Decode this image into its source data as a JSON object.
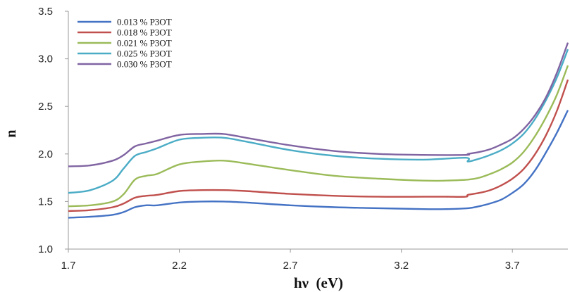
{
  "chart_data": {
    "type": "line",
    "xlabel": "hν  (eV)",
    "ylabel": "n",
    "xlim": [
      1.7,
      3.95
    ],
    "ylim": [
      1.0,
      3.5
    ],
    "x_ticks": [
      1.7,
      2.2,
      2.7,
      3.2,
      3.7
    ],
    "x_tick_labels": [
      "1.7",
      "2.2",
      "2.7",
      "3.2",
      "3.7"
    ],
    "y_ticks": [
      1.0,
      1.5,
      2.0,
      2.5,
      3.0,
      3.5
    ],
    "y_tick_labels": [
      "1.0",
      "1.5",
      "2.0",
      "2.5",
      "3.0",
      "3.5"
    ],
    "grid": false,
    "legend_position": "top-left",
    "series": [
      {
        "name": "0.013  %  P3OT",
        "color": "#4472C4",
        "points": [
          [
            1.7,
            1.33
          ],
          [
            1.8,
            1.34
          ],
          [
            1.9,
            1.36
          ],
          [
            1.95,
            1.39
          ],
          [
            2.0,
            1.44
          ],
          [
            2.05,
            1.46
          ],
          [
            2.1,
            1.46
          ],
          [
            2.2,
            1.49
          ],
          [
            2.3,
            1.5
          ],
          [
            2.4,
            1.5
          ],
          [
            2.5,
            1.49
          ],
          [
            2.7,
            1.46
          ],
          [
            2.9,
            1.44
          ],
          [
            3.1,
            1.43
          ],
          [
            3.3,
            1.42
          ],
          [
            3.4,
            1.42
          ],
          [
            3.5,
            1.43
          ],
          [
            3.55,
            1.45
          ],
          [
            3.6,
            1.48
          ],
          [
            3.65,
            1.52
          ],
          [
            3.7,
            1.59
          ],
          [
            3.75,
            1.68
          ],
          [
            3.8,
            1.82
          ],
          [
            3.85,
            2.01
          ],
          [
            3.9,
            2.22
          ],
          [
            3.95,
            2.46
          ]
        ]
      },
      {
        "name": "0.018  %  P3OT",
        "color": "#C0504D",
        "points": [
          [
            1.7,
            1.4
          ],
          [
            1.8,
            1.41
          ],
          [
            1.9,
            1.44
          ],
          [
            1.95,
            1.48
          ],
          [
            2.0,
            1.54
          ],
          [
            2.05,
            1.56
          ],
          [
            2.1,
            1.57
          ],
          [
            2.2,
            1.61
          ],
          [
            2.3,
            1.62
          ],
          [
            2.4,
            1.62
          ],
          [
            2.5,
            1.61
          ],
          [
            2.7,
            1.58
          ],
          [
            2.9,
            1.56
          ],
          [
            3.1,
            1.55
          ],
          [
            3.3,
            1.55
          ],
          [
            3.4,
            1.55
          ],
          [
            3.49,
            1.55
          ],
          [
            3.5,
            1.57
          ],
          [
            3.55,
            1.59
          ],
          [
            3.6,
            1.62
          ],
          [
            3.65,
            1.67
          ],
          [
            3.7,
            1.74
          ],
          [
            3.75,
            1.84
          ],
          [
            3.8,
            1.99
          ],
          [
            3.85,
            2.19
          ],
          [
            3.9,
            2.45
          ],
          [
            3.95,
            2.78
          ]
        ]
      },
      {
        "name": "0.021  %  P3OT",
        "color": "#9BBB59",
        "points": [
          [
            1.7,
            1.45
          ],
          [
            1.8,
            1.46
          ],
          [
            1.9,
            1.5
          ],
          [
            1.95,
            1.58
          ],
          [
            2.0,
            1.73
          ],
          [
            2.05,
            1.77
          ],
          [
            2.1,
            1.79
          ],
          [
            2.2,
            1.89
          ],
          [
            2.3,
            1.92
          ],
          [
            2.4,
            1.93
          ],
          [
            2.5,
            1.9
          ],
          [
            2.7,
            1.83
          ],
          [
            2.9,
            1.77
          ],
          [
            3.1,
            1.74
          ],
          [
            3.3,
            1.72
          ],
          [
            3.4,
            1.72
          ],
          [
            3.5,
            1.73
          ],
          [
            3.55,
            1.75
          ],
          [
            3.6,
            1.79
          ],
          [
            3.65,
            1.84
          ],
          [
            3.7,
            1.91
          ],
          [
            3.75,
            2.02
          ],
          [
            3.8,
            2.18
          ],
          [
            3.85,
            2.38
          ],
          [
            3.9,
            2.62
          ],
          [
            3.95,
            2.93
          ]
        ]
      },
      {
        "name": "0.025  %  P3OT",
        "color": "#4BACC6",
        "points": [
          [
            1.7,
            1.59
          ],
          [
            1.8,
            1.62
          ],
          [
            1.9,
            1.72
          ],
          [
            1.95,
            1.85
          ],
          [
            2.0,
            1.98
          ],
          [
            2.05,
            2.02
          ],
          [
            2.1,
            2.06
          ],
          [
            2.2,
            2.15
          ],
          [
            2.3,
            2.17
          ],
          [
            2.4,
            2.17
          ],
          [
            2.5,
            2.13
          ],
          [
            2.7,
            2.04
          ],
          [
            2.9,
            1.98
          ],
          [
            3.1,
            1.95
          ],
          [
            3.3,
            1.94
          ],
          [
            3.49,
            1.96
          ],
          [
            3.5,
            1.92
          ],
          [
            3.55,
            1.95
          ],
          [
            3.6,
            1.99
          ],
          [
            3.65,
            2.04
          ],
          [
            3.7,
            2.11
          ],
          [
            3.75,
            2.21
          ],
          [
            3.8,
            2.36
          ],
          [
            3.85,
            2.56
          ],
          [
            3.9,
            2.8
          ],
          [
            3.95,
            3.1
          ]
        ]
      },
      {
        "name": "0.030  %  P3OT",
        "color": "#8064A2",
        "points": [
          [
            1.7,
            1.87
          ],
          [
            1.8,
            1.88
          ],
          [
            1.9,
            1.93
          ],
          [
            1.95,
            1.99
          ],
          [
            2.0,
            2.08
          ],
          [
            2.05,
            2.11
          ],
          [
            2.1,
            2.14
          ],
          [
            2.2,
            2.2
          ],
          [
            2.3,
            2.21
          ],
          [
            2.4,
            2.21
          ],
          [
            2.5,
            2.17
          ],
          [
            2.7,
            2.09
          ],
          [
            2.9,
            2.03
          ],
          [
            3.1,
            2.0
          ],
          [
            3.3,
            1.99
          ],
          [
            3.49,
            1.99
          ],
          [
            3.5,
            2.0
          ],
          [
            3.55,
            2.02
          ],
          [
            3.6,
            2.05
          ],
          [
            3.65,
            2.1
          ],
          [
            3.7,
            2.16
          ],
          [
            3.75,
            2.26
          ],
          [
            3.8,
            2.4
          ],
          [
            3.85,
            2.59
          ],
          [
            3.9,
            2.85
          ],
          [
            3.95,
            3.17
          ]
        ]
      }
    ]
  }
}
